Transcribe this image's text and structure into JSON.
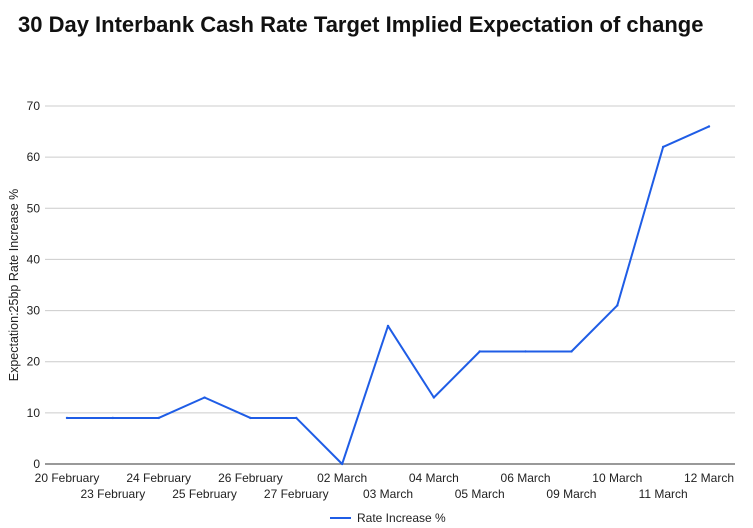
{
  "chart_data": {
    "type": "line",
    "title": "30 Day Interbank Cash Rate Target Implied Expectation of change",
    "xlabel": "",
    "ylabel": "Expectation:25bp Rate Increase %",
    "ylim": [
      0,
      70
    ],
    "yticks": [
      0,
      10,
      20,
      30,
      40,
      50,
      60,
      70
    ],
    "grid": true,
    "legend": "bottom",
    "categories": [
      "20 February",
      "23 February",
      "24 February",
      "25 February",
      "26 February",
      "27 February",
      "02 March",
      "03 March",
      "04 March",
      "05 March",
      "06 March",
      "09 March",
      "10 March",
      "11 March",
      "12 March"
    ],
    "series": [
      {
        "name": "Rate Increase %",
        "color": "#1f5de6",
        "values": [
          9,
          9,
          9,
          13,
          9,
          9,
          0,
          27,
          13,
          22,
          22,
          22,
          31,
          62,
          66
        ]
      }
    ]
  }
}
